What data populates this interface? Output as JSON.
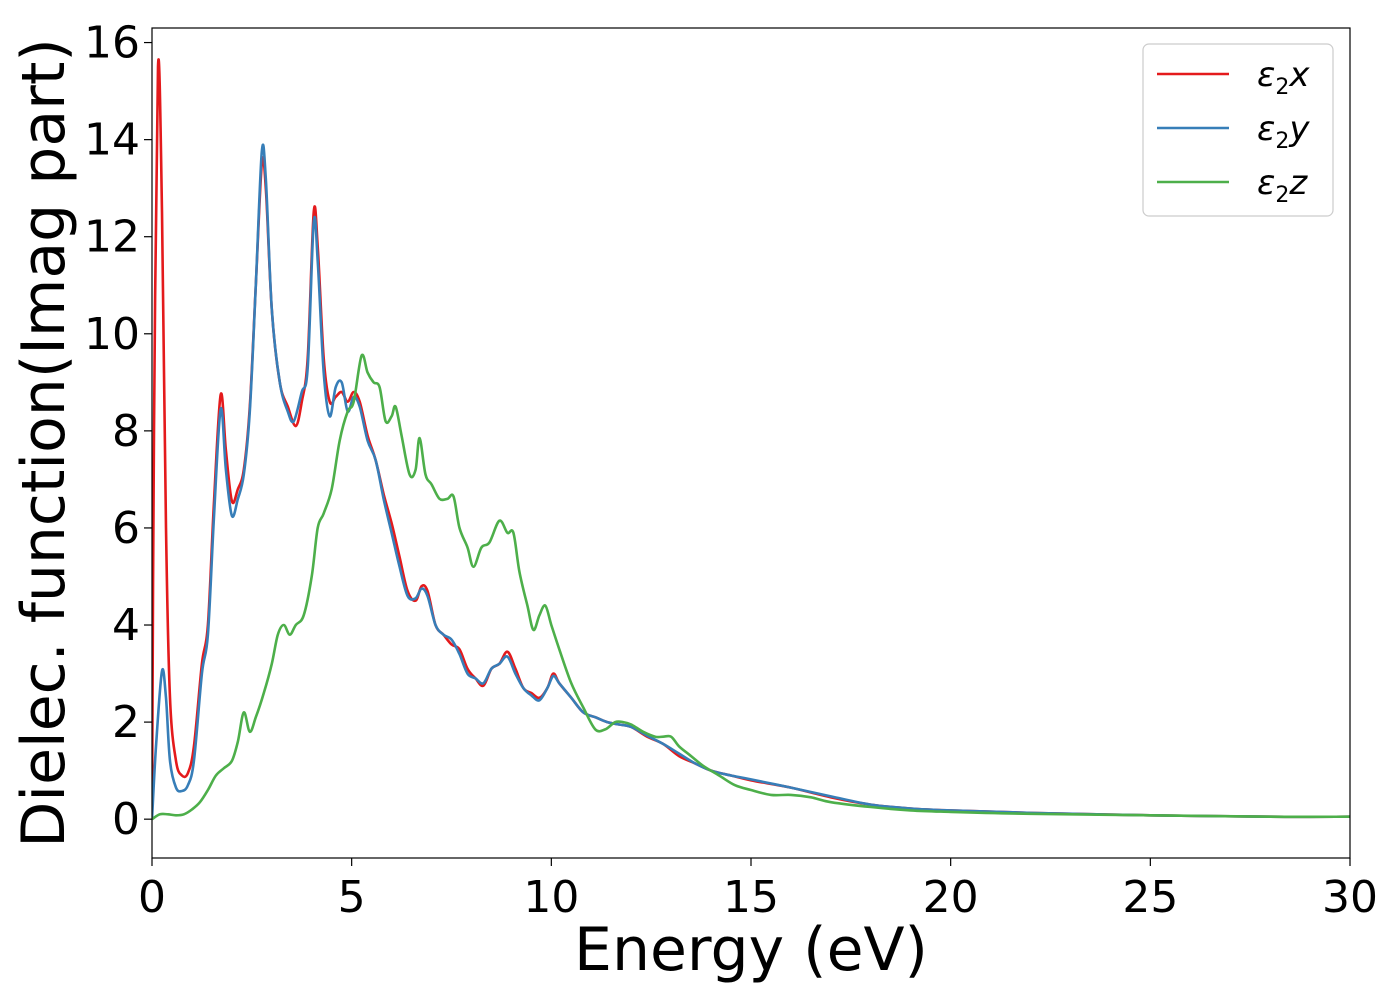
{
  "chart_data": {
    "type": "line",
    "xlabel": "Energy (eV)",
    "ylabel": "Dielec. function(Imag part)",
    "xlim": [
      0,
      30
    ],
    "ylim": [
      -0.8,
      16.3
    ],
    "x_ticks": [
      0,
      5,
      10,
      15,
      20,
      25,
      30
    ],
    "y_ticks": [
      0,
      2,
      4,
      6,
      8,
      10,
      12,
      14,
      16
    ],
    "grid": false,
    "legend_position": "top-right",
    "series": [
      {
        "name": "ε2x",
        "legend": {
          "base": "ε",
          "sub": "2",
          "suffix": "x"
        },
        "color": "#e41a1c",
        "points": [
          [
            0,
            0
          ],
          [
            0.05,
            8
          ],
          [
            0.15,
            15.5
          ],
          [
            0.25,
            12.5
          ],
          [
            0.35,
            6
          ],
          [
            0.45,
            2.5
          ],
          [
            0.6,
            1.2
          ],
          [
            0.75,
            0.9
          ],
          [
            0.9,
            0.95
          ],
          [
            1.05,
            1.5
          ],
          [
            1.25,
            3.2
          ],
          [
            1.4,
            4
          ],
          [
            1.55,
            6.5
          ],
          [
            1.72,
            8.75
          ],
          [
            1.85,
            7.6
          ],
          [
            2.0,
            6.55
          ],
          [
            2.15,
            6.8
          ],
          [
            2.3,
            7.2
          ],
          [
            2.45,
            8.5
          ],
          [
            2.6,
            11
          ],
          [
            2.75,
            13.5
          ],
          [
            2.85,
            13.0
          ],
          [
            3.0,
            10.5
          ],
          [
            3.2,
            9.0
          ],
          [
            3.4,
            8.5
          ],
          [
            3.6,
            8.1
          ],
          [
            3.75,
            8.6
          ],
          [
            3.9,
            9.5
          ],
          [
            4.05,
            12.5
          ],
          [
            4.15,
            11.8
          ],
          [
            4.3,
            9.5
          ],
          [
            4.45,
            8.6
          ],
          [
            4.6,
            8.7
          ],
          [
            4.75,
            8.8
          ],
          [
            4.9,
            8.6
          ],
          [
            5.05,
            8.8
          ],
          [
            5.2,
            8.6
          ],
          [
            5.4,
            7.9
          ],
          [
            5.6,
            7.4
          ],
          [
            5.8,
            6.7
          ],
          [
            6.0,
            6.1
          ],
          [
            6.2,
            5.4
          ],
          [
            6.4,
            4.7
          ],
          [
            6.6,
            4.5
          ],
          [
            6.75,
            4.8
          ],
          [
            6.9,
            4.7
          ],
          [
            7.1,
            4.0
          ],
          [
            7.3,
            3.8
          ],
          [
            7.5,
            3.6
          ],
          [
            7.7,
            3.5
          ],
          [
            7.9,
            3.1
          ],
          [
            8.1,
            2.9
          ],
          [
            8.3,
            2.75
          ],
          [
            8.5,
            3.1
          ],
          [
            8.7,
            3.2
          ],
          [
            8.9,
            3.45
          ],
          [
            9.1,
            3.1
          ],
          [
            9.3,
            2.7
          ],
          [
            9.5,
            2.6
          ],
          [
            9.7,
            2.5
          ],
          [
            9.9,
            2.7
          ],
          [
            10.05,
            3.0
          ],
          [
            10.2,
            2.8
          ],
          [
            10.5,
            2.5
          ],
          [
            10.8,
            2.2
          ],
          [
            11.1,
            2.1
          ],
          [
            11.4,
            2.0
          ],
          [
            11.7,
            1.95
          ],
          [
            12.0,
            1.9
          ],
          [
            12.4,
            1.7
          ],
          [
            12.8,
            1.55
          ],
          [
            13.2,
            1.3
          ],
          [
            13.6,
            1.15
          ],
          [
            14.0,
            1.0
          ],
          [
            14.5,
            0.9
          ],
          [
            15,
            0.8
          ],
          [
            16,
            0.65
          ],
          [
            17,
            0.45
          ],
          [
            18,
            0.3
          ],
          [
            19,
            0.22
          ],
          [
            20,
            0.18
          ],
          [
            22,
            0.13
          ],
          [
            25,
            0.08
          ],
          [
            28,
            0.05
          ],
          [
            30,
            0.05
          ]
        ]
      },
      {
        "name": "ε2y",
        "legend": {
          "base": "ε",
          "sub": "2",
          "suffix": "y"
        },
        "color": "#377eb8",
        "points": [
          [
            0,
            0
          ],
          [
            0.1,
            1.5
          ],
          [
            0.25,
            3.05
          ],
          [
            0.35,
            2.5
          ],
          [
            0.45,
            1.2
          ],
          [
            0.6,
            0.65
          ],
          [
            0.75,
            0.58
          ],
          [
            0.9,
            0.7
          ],
          [
            1.05,
            1.2
          ],
          [
            1.25,
            3.0
          ],
          [
            1.4,
            3.8
          ],
          [
            1.55,
            6.2
          ],
          [
            1.72,
            8.45
          ],
          [
            1.85,
            7.2
          ],
          [
            2.0,
            6.25
          ],
          [
            2.15,
            6.6
          ],
          [
            2.3,
            7.1
          ],
          [
            2.45,
            8.4
          ],
          [
            2.6,
            11
          ],
          [
            2.75,
            13.75
          ],
          [
            2.85,
            13.2
          ],
          [
            3.0,
            10.5
          ],
          [
            3.2,
            9.0
          ],
          [
            3.4,
            8.4
          ],
          [
            3.55,
            8.2
          ],
          [
            3.75,
            8.8
          ],
          [
            3.9,
            9.3
          ],
          [
            4.05,
            12.3
          ],
          [
            4.15,
            11.5
          ],
          [
            4.3,
            9.2
          ],
          [
            4.45,
            8.3
          ],
          [
            4.6,
            8.9
          ],
          [
            4.75,
            9.0
          ],
          [
            4.9,
            8.4
          ],
          [
            5.05,
            8.7
          ],
          [
            5.2,
            8.5
          ],
          [
            5.4,
            7.8
          ],
          [
            5.6,
            7.4
          ],
          [
            5.8,
            6.6
          ],
          [
            6.0,
            5.9
          ],
          [
            6.2,
            5.2
          ],
          [
            6.4,
            4.6
          ],
          [
            6.6,
            4.55
          ],
          [
            6.75,
            4.75
          ],
          [
            6.9,
            4.6
          ],
          [
            7.1,
            4.0
          ],
          [
            7.3,
            3.8
          ],
          [
            7.5,
            3.7
          ],
          [
            7.7,
            3.4
          ],
          [
            7.9,
            3.0
          ],
          [
            8.1,
            2.9
          ],
          [
            8.3,
            2.8
          ],
          [
            8.5,
            3.1
          ],
          [
            8.7,
            3.2
          ],
          [
            8.9,
            3.35
          ],
          [
            9.1,
            3.0
          ],
          [
            9.3,
            2.7
          ],
          [
            9.5,
            2.55
          ],
          [
            9.7,
            2.45
          ],
          [
            9.9,
            2.7
          ],
          [
            10.05,
            2.95
          ],
          [
            10.2,
            2.8
          ],
          [
            10.5,
            2.5
          ],
          [
            10.8,
            2.2
          ],
          [
            11.1,
            2.1
          ],
          [
            11.4,
            2.0
          ],
          [
            11.7,
            1.95
          ],
          [
            12.0,
            1.9
          ],
          [
            12.4,
            1.72
          ],
          [
            12.8,
            1.55
          ],
          [
            13.2,
            1.35
          ],
          [
            13.6,
            1.15
          ],
          [
            14.0,
            1.0
          ],
          [
            14.5,
            0.9
          ],
          [
            15,
            0.82
          ],
          [
            16,
            0.65
          ],
          [
            17,
            0.47
          ],
          [
            18,
            0.3
          ],
          [
            19,
            0.22
          ],
          [
            20,
            0.18
          ],
          [
            22,
            0.13
          ],
          [
            25,
            0.08
          ],
          [
            28,
            0.05
          ],
          [
            30,
            0.05
          ]
        ]
      },
      {
        "name": "ε2z",
        "legend": {
          "base": "ε",
          "sub": "2",
          "suffix": "z"
        },
        "color": "#4daf4a",
        "points": [
          [
            0,
            0
          ],
          [
            0.2,
            0.1
          ],
          [
            0.4,
            0.1
          ],
          [
            0.6,
            0.08
          ],
          [
            0.8,
            0.1
          ],
          [
            1.0,
            0.2
          ],
          [
            1.2,
            0.35
          ],
          [
            1.4,
            0.6
          ],
          [
            1.6,
            0.9
          ],
          [
            1.8,
            1.05
          ],
          [
            2.0,
            1.2
          ],
          [
            2.15,
            1.6
          ],
          [
            2.3,
            2.2
          ],
          [
            2.45,
            1.8
          ],
          [
            2.6,
            2.1
          ],
          [
            2.8,
            2.6
          ],
          [
            3.0,
            3.2
          ],
          [
            3.15,
            3.8
          ],
          [
            3.3,
            4.0
          ],
          [
            3.45,
            3.8
          ],
          [
            3.6,
            4.0
          ],
          [
            3.8,
            4.2
          ],
          [
            4.0,
            5.0
          ],
          [
            4.15,
            6.0
          ],
          [
            4.3,
            6.3
          ],
          [
            4.5,
            6.8
          ],
          [
            4.7,
            7.8
          ],
          [
            4.9,
            8.4
          ],
          [
            5.05,
            8.6
          ],
          [
            5.25,
            9.55
          ],
          [
            5.4,
            9.2
          ],
          [
            5.55,
            9.0
          ],
          [
            5.7,
            8.9
          ],
          [
            5.85,
            8.2
          ],
          [
            6.0,
            8.3
          ],
          [
            6.1,
            8.5
          ],
          [
            6.25,
            7.9
          ],
          [
            6.45,
            7.1
          ],
          [
            6.6,
            7.2
          ],
          [
            6.7,
            7.85
          ],
          [
            6.85,
            7.1
          ],
          [
            7.0,
            6.9
          ],
          [
            7.2,
            6.6
          ],
          [
            7.4,
            6.6
          ],
          [
            7.55,
            6.65
          ],
          [
            7.7,
            6.0
          ],
          [
            7.9,
            5.6
          ],
          [
            8.05,
            5.2
          ],
          [
            8.25,
            5.6
          ],
          [
            8.45,
            5.7
          ],
          [
            8.7,
            6.15
          ],
          [
            8.9,
            5.9
          ],
          [
            9.05,
            5.9
          ],
          [
            9.2,
            5.1
          ],
          [
            9.4,
            4.4
          ],
          [
            9.55,
            3.9
          ],
          [
            9.7,
            4.2
          ],
          [
            9.85,
            4.4
          ],
          [
            10.0,
            4.0
          ],
          [
            10.2,
            3.5
          ],
          [
            10.5,
            2.8
          ],
          [
            10.8,
            2.3
          ],
          [
            11.1,
            1.85
          ],
          [
            11.35,
            1.85
          ],
          [
            11.6,
            2.0
          ],
          [
            11.8,
            2.0
          ],
          [
            12.0,
            1.95
          ],
          [
            12.3,
            1.8
          ],
          [
            12.6,
            1.7
          ],
          [
            12.8,
            1.7
          ],
          [
            13.0,
            1.7
          ],
          [
            13.2,
            1.5
          ],
          [
            13.5,
            1.3
          ],
          [
            13.8,
            1.1
          ],
          [
            14.2,
            0.9
          ],
          [
            14.6,
            0.7
          ],
          [
            15,
            0.6
          ],
          [
            15.5,
            0.5
          ],
          [
            16,
            0.5
          ],
          [
            16.5,
            0.45
          ],
          [
            17,
            0.35
          ],
          [
            18,
            0.25
          ],
          [
            19,
            0.18
          ],
          [
            20,
            0.15
          ],
          [
            22,
            0.11
          ],
          [
            25,
            0.08
          ],
          [
            28,
            0.05
          ],
          [
            30,
            0.05
          ]
        ]
      }
    ]
  }
}
